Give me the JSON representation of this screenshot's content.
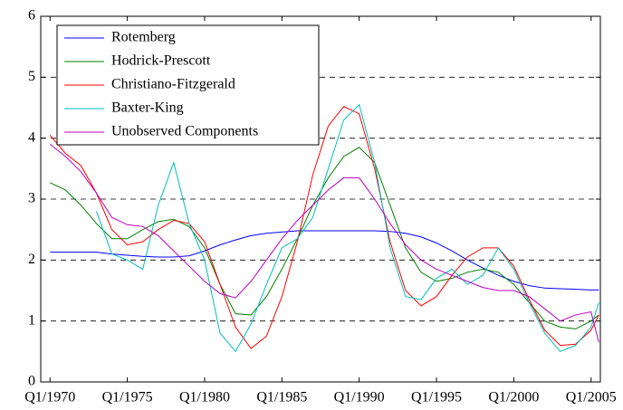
{
  "chart_data": {
    "type": "line",
    "x": [
      1970,
      1971,
      1972,
      1973,
      1974,
      1975,
      1976,
      1977,
      1978,
      1979,
      1980,
      1981,
      1982,
      1983,
      1984,
      1985,
      1986,
      1987,
      1988,
      1989,
      1990,
      1991,
      1992,
      1993,
      1994,
      1995,
      1996,
      1997,
      1998,
      1999,
      2000,
      2001,
      2002,
      2003,
      2004,
      2005,
      2005.5
    ],
    "series": [
      {
        "name": "Rotemberg",
        "color": "#0000ff",
        "values": [
          2.13,
          2.13,
          2.13,
          2.13,
          2.1,
          2.08,
          2.06,
          2.05,
          2.05,
          2.07,
          2.15,
          2.25,
          2.33,
          2.4,
          2.44,
          2.46,
          2.48,
          2.48,
          2.48,
          2.48,
          2.48,
          2.48,
          2.47,
          2.44,
          2.38,
          2.28,
          2.15,
          2.0,
          1.87,
          1.75,
          1.65,
          1.58,
          1.54,
          1.53,
          1.52,
          1.51,
          1.51
        ]
      },
      {
        "name": "Hodrick-Prescott",
        "color": "#008000",
        "values": [
          3.27,
          3.15,
          2.9,
          2.6,
          2.35,
          2.35,
          2.5,
          2.63,
          2.67,
          2.55,
          2.2,
          1.6,
          1.12,
          1.1,
          1.4,
          1.85,
          2.35,
          2.9,
          3.35,
          3.7,
          3.85,
          3.6,
          2.9,
          2.2,
          1.8,
          1.65,
          1.7,
          1.8,
          1.85,
          1.8,
          1.6,
          1.3,
          1.0,
          0.9,
          0.87,
          1.0,
          1.1
        ]
      },
      {
        "name": "Christiano-Fitzgerald",
        "color": "#ff0000",
        "values": [
          4.05,
          3.75,
          3.55,
          3.1,
          2.5,
          2.25,
          2.3,
          2.5,
          2.65,
          2.6,
          2.3,
          1.6,
          0.9,
          0.55,
          0.75,
          1.4,
          2.3,
          3.4,
          4.2,
          4.52,
          4.4,
          3.5,
          2.3,
          1.5,
          1.25,
          1.4,
          1.75,
          2.05,
          2.2,
          2.2,
          1.9,
          1.35,
          0.85,
          0.6,
          0.62,
          0.85,
          1.1
        ]
      },
      {
        "name": "Baxter-King",
        "color": "#00bfbf",
        "values": [
          null,
          null,
          null,
          2.8,
          2.1,
          2.0,
          1.85,
          2.9,
          3.6,
          2.6,
          2.0,
          0.8,
          0.5,
          0.95,
          1.6,
          2.2,
          2.35,
          2.7,
          3.5,
          4.3,
          4.55,
          3.6,
          2.2,
          1.4,
          1.35,
          1.7,
          1.85,
          1.6,
          1.75,
          2.2,
          1.85,
          1.3,
          0.8,
          0.5,
          0.6,
          0.9,
          1.3
        ]
      },
      {
        "name": "Unobserved Components",
        "color": "#bf00bf",
        "values": [
          3.9,
          3.7,
          3.45,
          3.1,
          2.7,
          2.58,
          2.55,
          2.4,
          2.15,
          1.9,
          1.65,
          1.45,
          1.38,
          1.65,
          2.0,
          2.35,
          2.65,
          2.9,
          3.15,
          3.35,
          3.35,
          3.0,
          2.6,
          2.25,
          2.0,
          1.85,
          1.75,
          1.65,
          1.55,
          1.5,
          1.5,
          1.4,
          1.2,
          1.0,
          1.1,
          1.15,
          0.65
        ]
      }
    ],
    "xlim": [
      1969.4,
      2005.6
    ],
    "xticks": [
      {
        "value": 1970,
        "label": "Q1/1970"
      },
      {
        "value": 1975,
        "label": "Q1/1975"
      },
      {
        "value": 1980,
        "label": "Q1/1980"
      },
      {
        "value": 1985,
        "label": "Q1/1985"
      },
      {
        "value": 1990,
        "label": "Q1/1990"
      },
      {
        "value": 1995,
        "label": "Q1/1995"
      },
      {
        "value": 2000,
        "label": "Q1/2000"
      },
      {
        "value": 2005,
        "label": "Q1/2005"
      }
    ],
    "ylim": [
      0,
      6
    ],
    "yticks": [
      0,
      1,
      2,
      3,
      4,
      5,
      6
    ],
    "grid": true,
    "legend": "upper left"
  }
}
